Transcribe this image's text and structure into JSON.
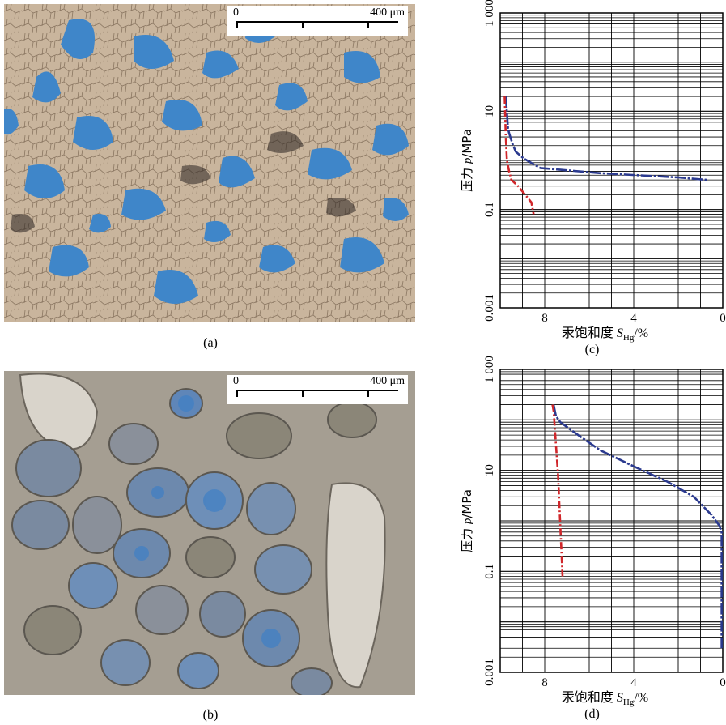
{
  "panels": {
    "a": {
      "label": "(a)",
      "scale_start": "0",
      "scale_end": "400 μm"
    },
    "b": {
      "label": "(b)",
      "scale_start": "0",
      "scale_end": "400 μm"
    },
    "c": {
      "label": "(c)"
    },
    "d": {
      "label": "(d)"
    }
  },
  "chart_data": [
    {
      "type": "line",
      "panel": "c",
      "xlabel_main": "汞饱和度 ",
      "xlabel_var": "S",
      "xlabel_sub": "Hg",
      "xlabel_unit": "/%",
      "ylabel_main": "压力 ",
      "ylabel_var": "p",
      "ylabel_unit": "/MPa",
      "x_ticks": [
        "8",
        "4",
        "0"
      ],
      "y_ticks": [
        "1 000",
        "10",
        "0.1",
        "0.001"
      ],
      "xlim": [
        10,
        0
      ],
      "ylim": [
        0.001,
        1000
      ],
      "y_scale": "log",
      "grid": true,
      "series": [
        {
          "color": "#2b3a8f",
          "x": [
            9.75,
            9.65,
            9.6,
            9.45,
            9.3,
            8.95,
            8.2,
            5.5,
            2.0,
            0.7
          ],
          "y": [
            20,
            4.5,
            3.6,
            2.2,
            1.5,
            1.1,
            0.7,
            0.55,
            0.45,
            0.4
          ]
        },
        {
          "color": "#d0262a",
          "x": [
            9.8,
            9.75,
            9.7,
            9.6,
            9.5,
            9.2,
            8.75,
            8.6,
            8.5
          ],
          "y": [
            20,
            3,
            1,
            0.6,
            0.4,
            0.3,
            0.17,
            0.14,
            0.08
          ]
        }
      ]
    },
    {
      "type": "line",
      "panel": "d",
      "xlabel_main": "汞饱和度 ",
      "xlabel_var": "S",
      "xlabel_sub": "Hg",
      "xlabel_unit": "/%",
      "ylabel_main": "压力 ",
      "ylabel_var": "p",
      "ylabel_unit": "/MPa",
      "x_ticks": [
        "8",
        "4",
        "0"
      ],
      "y_ticks": [
        "1 000",
        "10",
        "0.1",
        "0.001"
      ],
      "xlim": [
        10,
        0
      ],
      "ylim": [
        0.001,
        1000
      ],
      "y_scale": "log",
      "grid": true,
      "series": [
        {
          "color": "#2b3a8f",
          "x": [
            7.6,
            7.5,
            7.3,
            6.5,
            5.5,
            4.0,
            2.5,
            1.3,
            0.5,
            0.15,
            0.05,
            0.05
          ],
          "y": [
            200,
            120,
            90,
            50,
            25,
            12,
            6,
            3,
            1.3,
            0.8,
            0.6,
            0.003
          ]
        },
        {
          "color": "#d0262a",
          "x": [
            7.65,
            7.6,
            7.4,
            7.2
          ],
          "y": [
            200,
            150,
            8,
            0.08
          ]
        }
      ]
    }
  ]
}
